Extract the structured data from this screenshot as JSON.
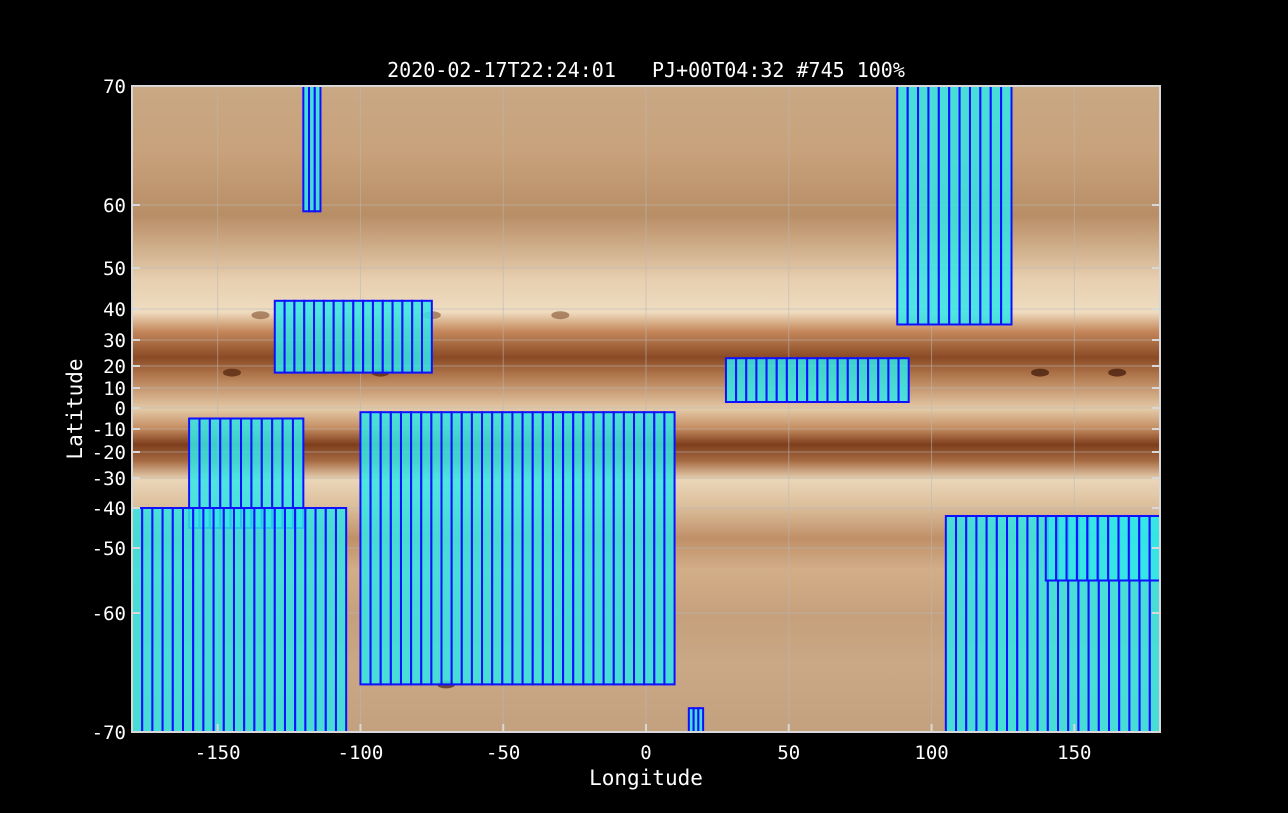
{
  "chart_data": {
    "type": "scatter",
    "title": "2020-02-17T22:24:01   PJ+00T04:32 #745 100%",
    "xlabel": "Longitude",
    "ylabel": "Latitude",
    "xlim": [
      -180,
      180
    ],
    "ylim": [
      -70,
      70
    ],
    "grid": true,
    "x_ticks": [
      -150,
      -100,
      -50,
      0,
      50,
      100,
      150
    ],
    "y_ticks": [
      -70,
      -60,
      -50,
      -40,
      -30,
      -20,
      -10,
      0,
      10,
      20,
      30,
      40,
      50,
      60,
      70
    ],
    "background": "Jupiter cylindrical map (bands)",
    "footprint_fill": "#33e6e6",
    "footprint_edge": "#1010ff",
    "footprint_regions": [
      {
        "lon_range": [
          -120,
          -114
        ],
        "lat_range": [
          59,
          70
        ]
      },
      {
        "lon_range": [
          -130,
          -75
        ],
        "lat_range": [
          17,
          42
        ]
      },
      {
        "lon_range": [
          -160,
          -120
        ],
        "lat_range": [
          -45,
          -5
        ]
      },
      {
        "lon_range": [
          -180,
          -105
        ],
        "lat_range": [
          -70,
          -40
        ]
      },
      {
        "lon_range": [
          -100,
          10
        ],
        "lat_range": [
          -66,
          -2
        ]
      },
      {
        "lon_range": [
          28,
          92
        ],
        "lat_range": [
          3,
          23
        ]
      },
      {
        "lon_range": [
          88,
          128
        ],
        "lat_range": [
          35,
          70
        ]
      },
      {
        "lon_range": [
          105,
          180
        ],
        "lat_range": [
          -70,
          -42
        ]
      },
      {
        "lon_range": [
          140,
          180
        ],
        "lat_range": [
          -55,
          -42
        ]
      },
      {
        "lon_range": [
          15,
          20
        ],
        "lat_range": [
          -70,
          -68
        ]
      }
    ]
  }
}
